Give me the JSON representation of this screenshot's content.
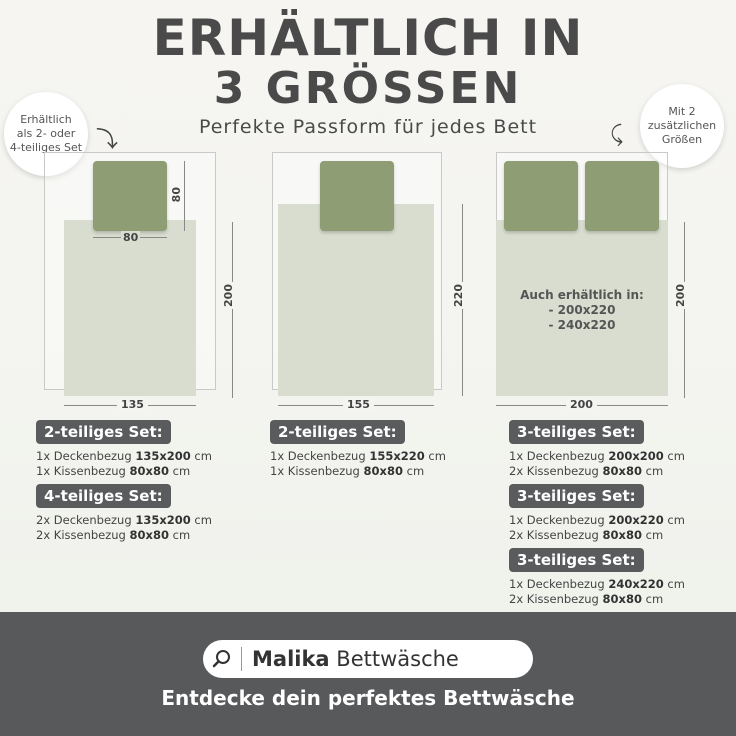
{
  "header": {
    "title_line1": "ERHÄLTLICH IN",
    "title_line2": "3 GRÖSSEN",
    "subtitle": "Perfekte Passform für jedes Bett"
  },
  "callouts": {
    "left": [
      "Erhältlich",
      "als 2- oder",
      "4-teiliges Set"
    ],
    "right": [
      "Mit 2",
      "zusätzlichen",
      "Größen"
    ]
  },
  "beds": [
    {
      "pillow_w": "80",
      "pillow_h": "80",
      "height": "200",
      "width": "135"
    },
    {
      "height": "220",
      "width": "155"
    },
    {
      "height": "200",
      "width": "200",
      "also_title": "Auch erhältlich in:",
      "also_items": [
        "- 200x220",
        "- 240x220"
      ]
    }
  ],
  "sets": {
    "col1": [
      {
        "label": "2-teiliges Set:",
        "lines": [
          {
            "pre": "1x Deckenbezug ",
            "size": "135x200",
            "post": " cm"
          },
          {
            "pre": "1x Kissenbezug ",
            "size": "80x80",
            "post": " cm"
          }
        ]
      },
      {
        "label": "4-teiliges Set:",
        "lines": [
          {
            "pre": "2x Deckenbezug ",
            "size": "135x200",
            "post": " cm"
          },
          {
            "pre": "2x Kissenbezug ",
            "size": "80x80",
            "post": " cm"
          }
        ]
      }
    ],
    "col2": [
      {
        "label": "2-teiliges Set:",
        "lines": [
          {
            "pre": "1x Deckenbezug ",
            "size": "155x220",
            "post": " cm"
          },
          {
            "pre": "1x Kissenbezug ",
            "size": "80x80",
            "post": " cm"
          }
        ]
      }
    ],
    "col3": [
      {
        "label": "3-teiliges Set:",
        "lines": [
          {
            "pre": "1x Deckenbezug ",
            "size": "200x200",
            "post": " cm"
          },
          {
            "pre": "2x Kissenbezug ",
            "size": "80x80",
            "post": " cm"
          }
        ]
      },
      {
        "label": "3-teiliges Set:",
        "lines": [
          {
            "pre": "1x Deckenbezug ",
            "size": "200x220",
            "post": " cm"
          },
          {
            "pre": "2x Kissenbezug ",
            "size": "80x80",
            "post": " cm"
          }
        ]
      },
      {
        "label": "3-teiliges Set:",
        "lines": [
          {
            "pre": "1x Deckenbezug ",
            "size": "240x220",
            "post": " cm"
          },
          {
            "pre": "2x Kissenbezug ",
            "size": "80x80",
            "post": " cm"
          }
        ]
      }
    ]
  },
  "footer": {
    "brand_bold": "Malika",
    "brand_rest": " Bettwäsche",
    "tagline": "Entdecke dein perfektes Bettwäsche",
    "icon": "search-icon"
  },
  "colors": {
    "pillow": "#8e9d73",
    "duvet": "#d8ddcf",
    "badge": "#5a5b5d",
    "footer": "#58595b"
  }
}
